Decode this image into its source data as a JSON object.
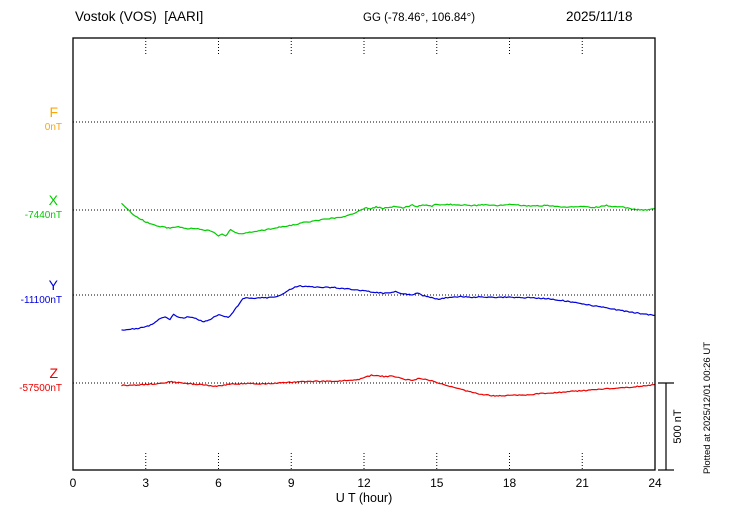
{
  "header": {
    "station": "Vostok (VOS)  [AARI]",
    "coordinates": "GG (-78.46°, 106.84°)",
    "date": "2025/11/18"
  },
  "side": {
    "plotted_note": "Plotted at 2025/12/01 00:26 UT"
  },
  "scale_bar": {
    "label": "500 nT",
    "span_nT": 500
  },
  "style": {
    "noise_nT": 3,
    "axis_color": "#000000",
    "background": "#ffffff"
  },
  "chart_data": {
    "type": "line",
    "title": "Vostok (VOS) [AARI] magnetogram 2025/11/18",
    "xlabel": "U T (hour)",
    "xlim": [
      0,
      24
    ],
    "x_ticks": [
      0,
      3,
      6,
      9,
      12,
      15,
      18,
      21,
      24
    ],
    "baseline_spacing_nT": 500,
    "grid": "dotted horizontal baselines per component, dotted tick stubs top/bottom",
    "legend_position": "left-margin component labels",
    "series": [
      {
        "name": "F",
        "baseline_label": "0nT",
        "color": "#FFA500",
        "points": []
      },
      {
        "name": "X",
        "baseline_label": "-7440nT",
        "color": "#00CC00",
        "points": [
          [
            2,
            40
          ],
          [
            2.2,
            12
          ],
          [
            2.5,
            -28
          ],
          [
            2.8,
            -52
          ],
          [
            3,
            -68
          ],
          [
            3.3,
            -84
          ],
          [
            3.6,
            -94
          ],
          [
            4,
            -104
          ],
          [
            4.2,
            -96
          ],
          [
            4.5,
            -100
          ],
          [
            4.8,
            -108
          ],
          [
            5,
            -104
          ],
          [
            5.3,
            -112
          ],
          [
            5.6,
            -118
          ],
          [
            5.8,
            -128
          ],
          [
            6,
            -148
          ],
          [
            6.15,
            -138
          ],
          [
            6.3,
            -146
          ],
          [
            6.5,
            -112
          ],
          [
            6.7,
            -130
          ],
          [
            6.9,
            -138
          ],
          [
            7.2,
            -128
          ],
          [
            7.5,
            -122
          ],
          [
            8,
            -112
          ],
          [
            8.5,
            -98
          ],
          [
            9,
            -88
          ],
          [
            9.5,
            -72
          ],
          [
            10,
            -62
          ],
          [
            10.5,
            -50
          ],
          [
            11,
            -42
          ],
          [
            11.3,
            -34
          ],
          [
            11.6,
            -18
          ],
          [
            11.9,
            2
          ],
          [
            12.1,
            12
          ],
          [
            12.3,
            8
          ],
          [
            12.5,
            18
          ],
          [
            12.8,
            10
          ],
          [
            13,
            14
          ],
          [
            13.3,
            22
          ],
          [
            13.6,
            12
          ],
          [
            14,
            28
          ],
          [
            14.2,
            20
          ],
          [
            14.5,
            30
          ],
          [
            14.8,
            22
          ],
          [
            15,
            34
          ],
          [
            15.2,
            28
          ],
          [
            15.5,
            32
          ],
          [
            16,
            28
          ],
          [
            16.5,
            25
          ],
          [
            17,
            30
          ],
          [
            17.5,
            26
          ],
          [
            18,
            30
          ],
          [
            18.5,
            26
          ],
          [
            19,
            22
          ],
          [
            19.5,
            26
          ],
          [
            20,
            20
          ],
          [
            20.5,
            16
          ],
          [
            21,
            22
          ],
          [
            21.5,
            14
          ],
          [
            22,
            26
          ],
          [
            22.3,
            18
          ],
          [
            22.6,
            20
          ],
          [
            23,
            6
          ],
          [
            23.3,
            2
          ],
          [
            23.6,
            0
          ],
          [
            24,
            8
          ]
        ]
      },
      {
        "name": "Y",
        "baseline_label": "-11100nT",
        "color": "#0000DD",
        "points": [
          [
            2,
            -200
          ],
          [
            2.3,
            -196
          ],
          [
            2.6,
            -192
          ],
          [
            3,
            -182
          ],
          [
            3.2,
            -172
          ],
          [
            3.4,
            -155
          ],
          [
            3.6,
            -132
          ],
          [
            3.8,
            -128
          ],
          [
            4,
            -138
          ],
          [
            4.15,
            -112
          ],
          [
            4.3,
            -125
          ],
          [
            4.5,
            -132
          ],
          [
            4.7,
            -126
          ],
          [
            5,
            -132
          ],
          [
            5.2,
            -142
          ],
          [
            5.4,
            -152
          ],
          [
            5.6,
            -145
          ],
          [
            5.8,
            -128
          ],
          [
            6,
            -112
          ],
          [
            6.2,
            -120
          ],
          [
            6.4,
            -128
          ],
          [
            6.6,
            -98
          ],
          [
            6.8,
            -60
          ],
          [
            7,
            -22
          ],
          [
            7.2,
            -16
          ],
          [
            7.5,
            -20
          ],
          [
            7.8,
            -14
          ],
          [
            8,
            -16
          ],
          [
            8.2,
            -12
          ],
          [
            8.5,
            -5
          ],
          [
            8.8,
            18
          ],
          [
            9,
            35
          ],
          [
            9.3,
            52
          ],
          [
            9.6,
            48
          ],
          [
            10,
            46
          ],
          [
            10.4,
            44
          ],
          [
            10.8,
            42
          ],
          [
            11.2,
            36
          ],
          [
            11.6,
            30
          ],
          [
            12,
            24
          ],
          [
            12.4,
            16
          ],
          [
            12.8,
            10
          ],
          [
            13,
            12
          ],
          [
            13.3,
            20
          ],
          [
            13.6,
            6
          ],
          [
            14,
            0
          ],
          [
            14.2,
            10
          ],
          [
            14.5,
            -6
          ],
          [
            14.8,
            -14
          ],
          [
            15,
            -24
          ],
          [
            15.3,
            -18
          ],
          [
            15.6,
            -12
          ],
          [
            16,
            -10
          ],
          [
            16.4,
            -14
          ],
          [
            16.8,
            -11
          ],
          [
            17.2,
            -14
          ],
          [
            17.6,
            -12
          ],
          [
            18,
            -13
          ],
          [
            18.4,
            -14
          ],
          [
            18.8,
            -16
          ],
          [
            19.2,
            -18
          ],
          [
            19.6,
            -20
          ],
          [
            20,
            -28
          ],
          [
            20.4,
            -36
          ],
          [
            20.8,
            -46
          ],
          [
            21.2,
            -56
          ],
          [
            21.6,
            -64
          ],
          [
            22,
            -74
          ],
          [
            22.4,
            -84
          ],
          [
            22.8,
            -94
          ],
          [
            23.2,
            -102
          ],
          [
            23.6,
            -110
          ],
          [
            24,
            -116
          ]
        ]
      },
      {
        "name": "Z",
        "baseline_label": "-57500nT",
        "color": "#EE0000",
        "points": [
          [
            2,
            -14
          ],
          [
            2.4,
            -12
          ],
          [
            2.8,
            -10
          ],
          [
            3.2,
            -6
          ],
          [
            3.6,
            -2
          ],
          [
            4,
            8
          ],
          [
            4.2,
            4
          ],
          [
            4.5,
            0
          ],
          [
            4.8,
            -4
          ],
          [
            5,
            -6
          ],
          [
            5.4,
            -12
          ],
          [
            5.8,
            -16
          ],
          [
            6,
            -18
          ],
          [
            6.3,
            -10
          ],
          [
            6.6,
            -6
          ],
          [
            7,
            -4
          ],
          [
            7.4,
            -2
          ],
          [
            7.8,
            -5
          ],
          [
            8.2,
            -2
          ],
          [
            8.6,
            1
          ],
          [
            9,
            4
          ],
          [
            9.4,
            7
          ],
          [
            9.8,
            9
          ],
          [
            10.2,
            9
          ],
          [
            10.6,
            10
          ],
          [
            11,
            12
          ],
          [
            11.4,
            16
          ],
          [
            11.8,
            22
          ],
          [
            12,
            30
          ],
          [
            12.3,
            44
          ],
          [
            12.6,
            40
          ],
          [
            12.9,
            36
          ],
          [
            13.2,
            40
          ],
          [
            13.5,
            28
          ],
          [
            13.8,
            18
          ],
          [
            14,
            14
          ],
          [
            14.3,
            28
          ],
          [
            14.6,
            20
          ],
          [
            15,
            4
          ],
          [
            15.4,
            -12
          ],
          [
            15.8,
            -28
          ],
          [
            16.2,
            -44
          ],
          [
            16.6,
            -58
          ],
          [
            17,
            -68
          ],
          [
            17.4,
            -74
          ],
          [
            17.8,
            -73
          ],
          [
            18.2,
            -70
          ],
          [
            18.6,
            -68
          ],
          [
            19,
            -64
          ],
          [
            19.4,
            -60
          ],
          [
            19.8,
            -56
          ],
          [
            20.2,
            -52
          ],
          [
            20.6,
            -48
          ],
          [
            21,
            -44
          ],
          [
            21.4,
            -40
          ],
          [
            21.8,
            -36
          ],
          [
            22.2,
            -32
          ],
          [
            22.6,
            -28
          ],
          [
            23,
            -24
          ],
          [
            23.4,
            -18
          ],
          [
            23.8,
            -12
          ],
          [
            24,
            -8
          ]
        ]
      }
    ]
  }
}
